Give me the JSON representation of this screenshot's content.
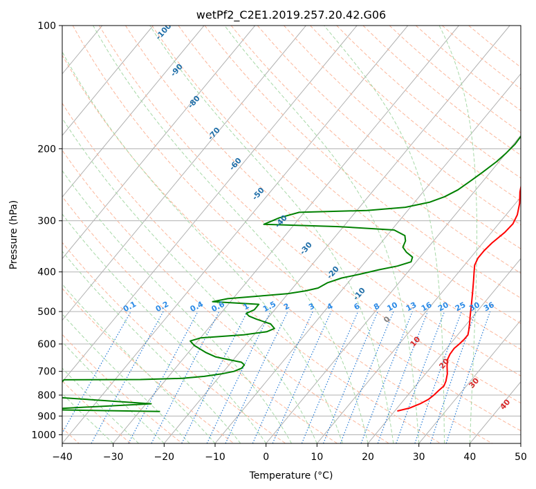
{
  "chart_data": {
    "type": "line",
    "chart_kind": "skew-T log-P diagram",
    "title": "wetPf2_C2E1.2019.257.20.42.G06",
    "xlabel": "Temperature (°C)",
    "ylabel": "Pressure (hPa)",
    "xlim": [
      -40,
      50
    ],
    "ylim": [
      1050,
      100
    ],
    "y_scale": "log",
    "x_ticks": [
      -40,
      -30,
      -20,
      -10,
      0,
      10,
      20,
      30,
      40,
      50
    ],
    "y_ticks": [
      100,
      200,
      300,
      400,
      500,
      600,
      700,
      800,
      900,
      1000
    ],
    "grid": true,
    "series": [
      {
        "role": "temperature",
        "color": "#ff0000",
        "points": [
          [
            20.5,
            875
          ],
          [
            22.5,
            860
          ],
          [
            23.8,
            840
          ],
          [
            24.7,
            820
          ],
          [
            25.1,
            800
          ],
          [
            25.3,
            780
          ],
          [
            25.6,
            760
          ],
          [
            25.2,
            740
          ],
          [
            24.3,
            710
          ],
          [
            23.0,
            680
          ],
          [
            22.0,
            655
          ],
          [
            21.6,
            635
          ],
          [
            21.5,
            615
          ],
          [
            21.8,
            600
          ],
          [
            22.0,
            585
          ],
          [
            22.0,
            570
          ],
          [
            21.4,
            555
          ],
          [
            20.5,
            535
          ],
          [
            19.5,
            515
          ],
          [
            18.5,
            495
          ],
          [
            17.2,
            470
          ],
          [
            15.8,
            445
          ],
          [
            14.3,
            420
          ],
          [
            13.0,
            400
          ],
          [
            12.0,
            385
          ],
          [
            11.5,
            370
          ],
          [
            11.5,
            355
          ],
          [
            11.8,
            340
          ],
          [
            12.6,
            320
          ],
          [
            12.8,
            305
          ],
          [
            12.2,
            290
          ],
          [
            10.8,
            272
          ],
          [
            9.0,
            255
          ],
          [
            7.2,
            235
          ],
          [
            5.4,
            215
          ],
          [
            3.8,
            200
          ],
          [
            1.8,
            185
          ],
          [
            0.0,
            172
          ],
          [
            -1.7,
            158
          ],
          [
            -1.8,
            150
          ],
          [
            -2.2,
            142
          ],
          [
            -3.4,
            136
          ],
          [
            -4.2,
            128
          ],
          [
            -3.2,
            122
          ],
          [
            -1.5,
            118
          ],
          [
            2.0,
            115
          ],
          [
            5.5,
            112
          ],
          [
            8.3,
            109
          ],
          [
            9.3,
            106
          ],
          [
            9.7,
            103
          ],
          [
            10.0,
            100
          ]
        ]
      },
      {
        "role": "dewpoint",
        "color": "#008000",
        "points": [
          [
            -26,
            877
          ],
          [
            -50,
            868
          ],
          [
            -29,
            840
          ],
          [
            -50,
            808
          ],
          [
            -50,
            734
          ],
          [
            -35,
            733
          ],
          [
            -27,
            728
          ],
          [
            -23,
            720
          ],
          [
            -20,
            710
          ],
          [
            -18,
            700
          ],
          [
            -17,
            688
          ],
          [
            -17,
            675
          ],
          [
            -18,
            665
          ],
          [
            -21,
            655
          ],
          [
            -24,
            645
          ],
          [
            -26.5,
            630
          ],
          [
            -30,
            605
          ],
          [
            -31.5,
            590
          ],
          [
            -30,
            580
          ],
          [
            -22,
            570
          ],
          [
            -18,
            560
          ],
          [
            -17,
            550
          ],
          [
            -18.5,
            536
          ],
          [
            -22,
            522
          ],
          [
            -24,
            513
          ],
          [
            -25,
            505
          ],
          [
            -24,
            495
          ],
          [
            -24,
            480
          ],
          [
            -28,
            477
          ],
          [
            -33.5,
            473
          ],
          [
            -31,
            465
          ],
          [
            -25,
            458
          ],
          [
            -20,
            452
          ],
          [
            -17,
            445
          ],
          [
            -15,
            438
          ],
          [
            -14,
            425
          ],
          [
            -12,
            414
          ],
          [
            -9,
            405
          ],
          [
            -6,
            395
          ],
          [
            -3,
            387
          ],
          [
            -1,
            378
          ],
          [
            -1.5,
            368
          ],
          [
            -3.5,
            358
          ],
          [
            -5,
            348
          ],
          [
            -5.5,
            336
          ],
          [
            -6.5,
            326
          ],
          [
            -9.5,
            316
          ],
          [
            -21,
            310
          ],
          [
            -36,
            306
          ],
          [
            -34,
            295
          ],
          [
            -31,
            286
          ],
          [
            -18,
            283
          ],
          [
            -11,
            278
          ],
          [
            -7,
            270
          ],
          [
            -5,
            262
          ],
          [
            -3.5,
            252
          ],
          [
            -2.5,
            240
          ],
          [
            -1.5,
            228
          ],
          [
            -0.5,
            215
          ],
          [
            0.0,
            205
          ],
          [
            0.3,
            195
          ],
          [
            0.1,
            183
          ],
          [
            -1.5,
            172
          ],
          [
            -1.8,
            158
          ],
          [
            -2.2,
            148
          ],
          [
            -2.6,
            140
          ],
          [
            -2.4,
            133
          ],
          [
            -2.0,
            127
          ],
          [
            -1.8,
            122
          ],
          [
            -1.5,
            115
          ],
          [
            -1.0,
            109
          ],
          [
            0.8,
            105
          ],
          [
            2.0,
            102
          ],
          [
            2.4,
            100
          ]
        ]
      }
    ],
    "dry_adiabat_labels": [
      "-100",
      "-90",
      "-80",
      "-70",
      "-60",
      "-50",
      "-40",
      "-30",
      "-20",
      "-10",
      "0",
      "10",
      "20",
      "30",
      "40"
    ],
    "mixing_ratio_labels": [
      "0.1",
      "0.2",
      "0.4",
      "0.6",
      "1",
      "1.5",
      "2",
      "3",
      "4",
      "6",
      "8",
      "10",
      "13",
      "16",
      "20",
      "25",
      "30",
      "36"
    ],
    "mixing_ratio_values": [
      0.1,
      0.2,
      0.4,
      0.6,
      1,
      1.5,
      2,
      3,
      4,
      6,
      8,
      10,
      13,
      16,
      20,
      25,
      30,
      36
    ],
    "colors": {
      "isotherm": "#b0b0b0",
      "dry_adiabat": "#fcb69a",
      "moist_adiabat": "#a6d8a6",
      "mixing_ratio": "#1f77d4",
      "dry_label_cold": "#1f6ea8",
      "dry_label_warm": "#d62728"
    }
  }
}
